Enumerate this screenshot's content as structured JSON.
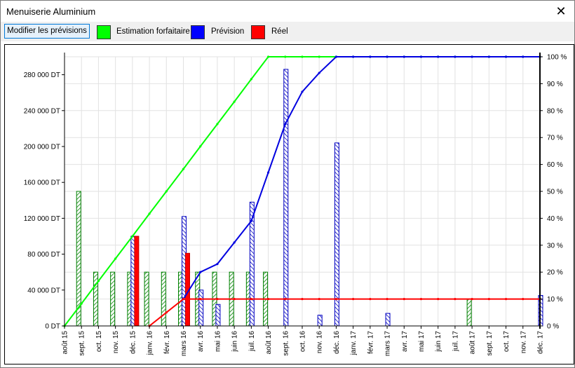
{
  "window": {
    "title": "Menuiserie Aluminium",
    "close_glyph": "✕"
  },
  "toolbar": {
    "modify_button": "Modifier les prévisions"
  },
  "legend": [
    {
      "label": "Estimation forfaitaire",
      "color": "#00ff00"
    },
    {
      "label": "Prévision",
      "color": "#0000ff"
    },
    {
      "label": "Réel",
      "color": "#ff0000"
    }
  ],
  "chart_data": {
    "type": "bar+line",
    "categories": [
      "août 15",
      "sept. 15",
      "oct. 15",
      "nov. 15",
      "déc. 15",
      "janv. 16",
      "févr. 16",
      "mars 16",
      "avr. 16",
      "mai 16",
      "juin 16",
      "juil. 16",
      "août 16",
      "sept. 16",
      "oct. 16",
      "nov. 16",
      "déc. 16",
      "janv. 17",
      "févr. 17",
      "mars 17",
      "avr. 17",
      "mai 17",
      "juin 17",
      "juil. 17",
      "août 17",
      "sept. 17",
      "oct. 17",
      "nov. 17",
      "déc. 17"
    ],
    "y_left": {
      "min": 0,
      "max": 300000,
      "ticks": [
        0,
        40000,
        80000,
        120000,
        160000,
        200000,
        240000,
        280000
      ],
      "tick_labels": [
        "0 DT",
        "40 000 DT",
        "80 000 DT",
        "120 000 DT",
        "160 000 DT",
        "200 000 DT",
        "240 000 DT",
        "280 000 DT"
      ]
    },
    "y_right": {
      "min": 0,
      "max": 100,
      "ticks": [
        0,
        10,
        20,
        30,
        40,
        50,
        60,
        70,
        80,
        90,
        100
      ],
      "tick_labels": [
        "0 %",
        "10 %",
        "20 %",
        "30 %",
        "40 %",
        "50 %",
        "60 %",
        "70 %",
        "80 %",
        "90 %",
        "100 %"
      ]
    },
    "grid": true,
    "bars": {
      "estimation": [
        0,
        150000,
        60000,
        60000,
        60000,
        60000,
        60000,
        60000,
        60000,
        60000,
        60000,
        60000,
        60000,
        0,
        0,
        0,
        0,
        0,
        0,
        0,
        0,
        0,
        0,
        0,
        30000,
        0,
        0,
        0,
        0
      ],
      "prevision": [
        0,
        0,
        0,
        0,
        100000,
        0,
        0,
        122000,
        40000,
        24000,
        0,
        138000,
        0,
        286000,
        0,
        12000,
        204000,
        0,
        0,
        14000,
        0,
        0,
        0,
        0,
        0,
        0,
        0,
        0,
        34000
      ],
      "reel": [
        0,
        0,
        0,
        0,
        100000,
        0,
        0,
        81000,
        0,
        0,
        0,
        0,
        0,
        0,
        0,
        0,
        0,
        0,
        0,
        0,
        0,
        0,
        0,
        0,
        0,
        0,
        0,
        0,
        0
      ]
    },
    "lines": {
      "estimation": [
        0,
        8.3,
        16.7,
        25,
        33.3,
        41.7,
        50,
        58.3,
        66.7,
        75,
        83.3,
        91.7,
        100,
        100,
        100,
        100,
        100,
        100,
        100,
        100,
        100,
        100,
        100,
        100,
        100,
        100,
        100,
        100,
        100
      ],
      "prevision": [
        null,
        null,
        null,
        null,
        null,
        null,
        null,
        10,
        20,
        23,
        31,
        39,
        57,
        75,
        87,
        94,
        100,
        100,
        100,
        100,
        100,
        100,
        100,
        100,
        100,
        100,
        100,
        100,
        100
      ],
      "reel": [
        null,
        null,
        null,
        null,
        null,
        0,
        5,
        10,
        10,
        10,
        10,
        10,
        10,
        10,
        10,
        10,
        10,
        10,
        10,
        10,
        10,
        10,
        10,
        10,
        10,
        10,
        10,
        10,
        10
      ]
    }
  }
}
